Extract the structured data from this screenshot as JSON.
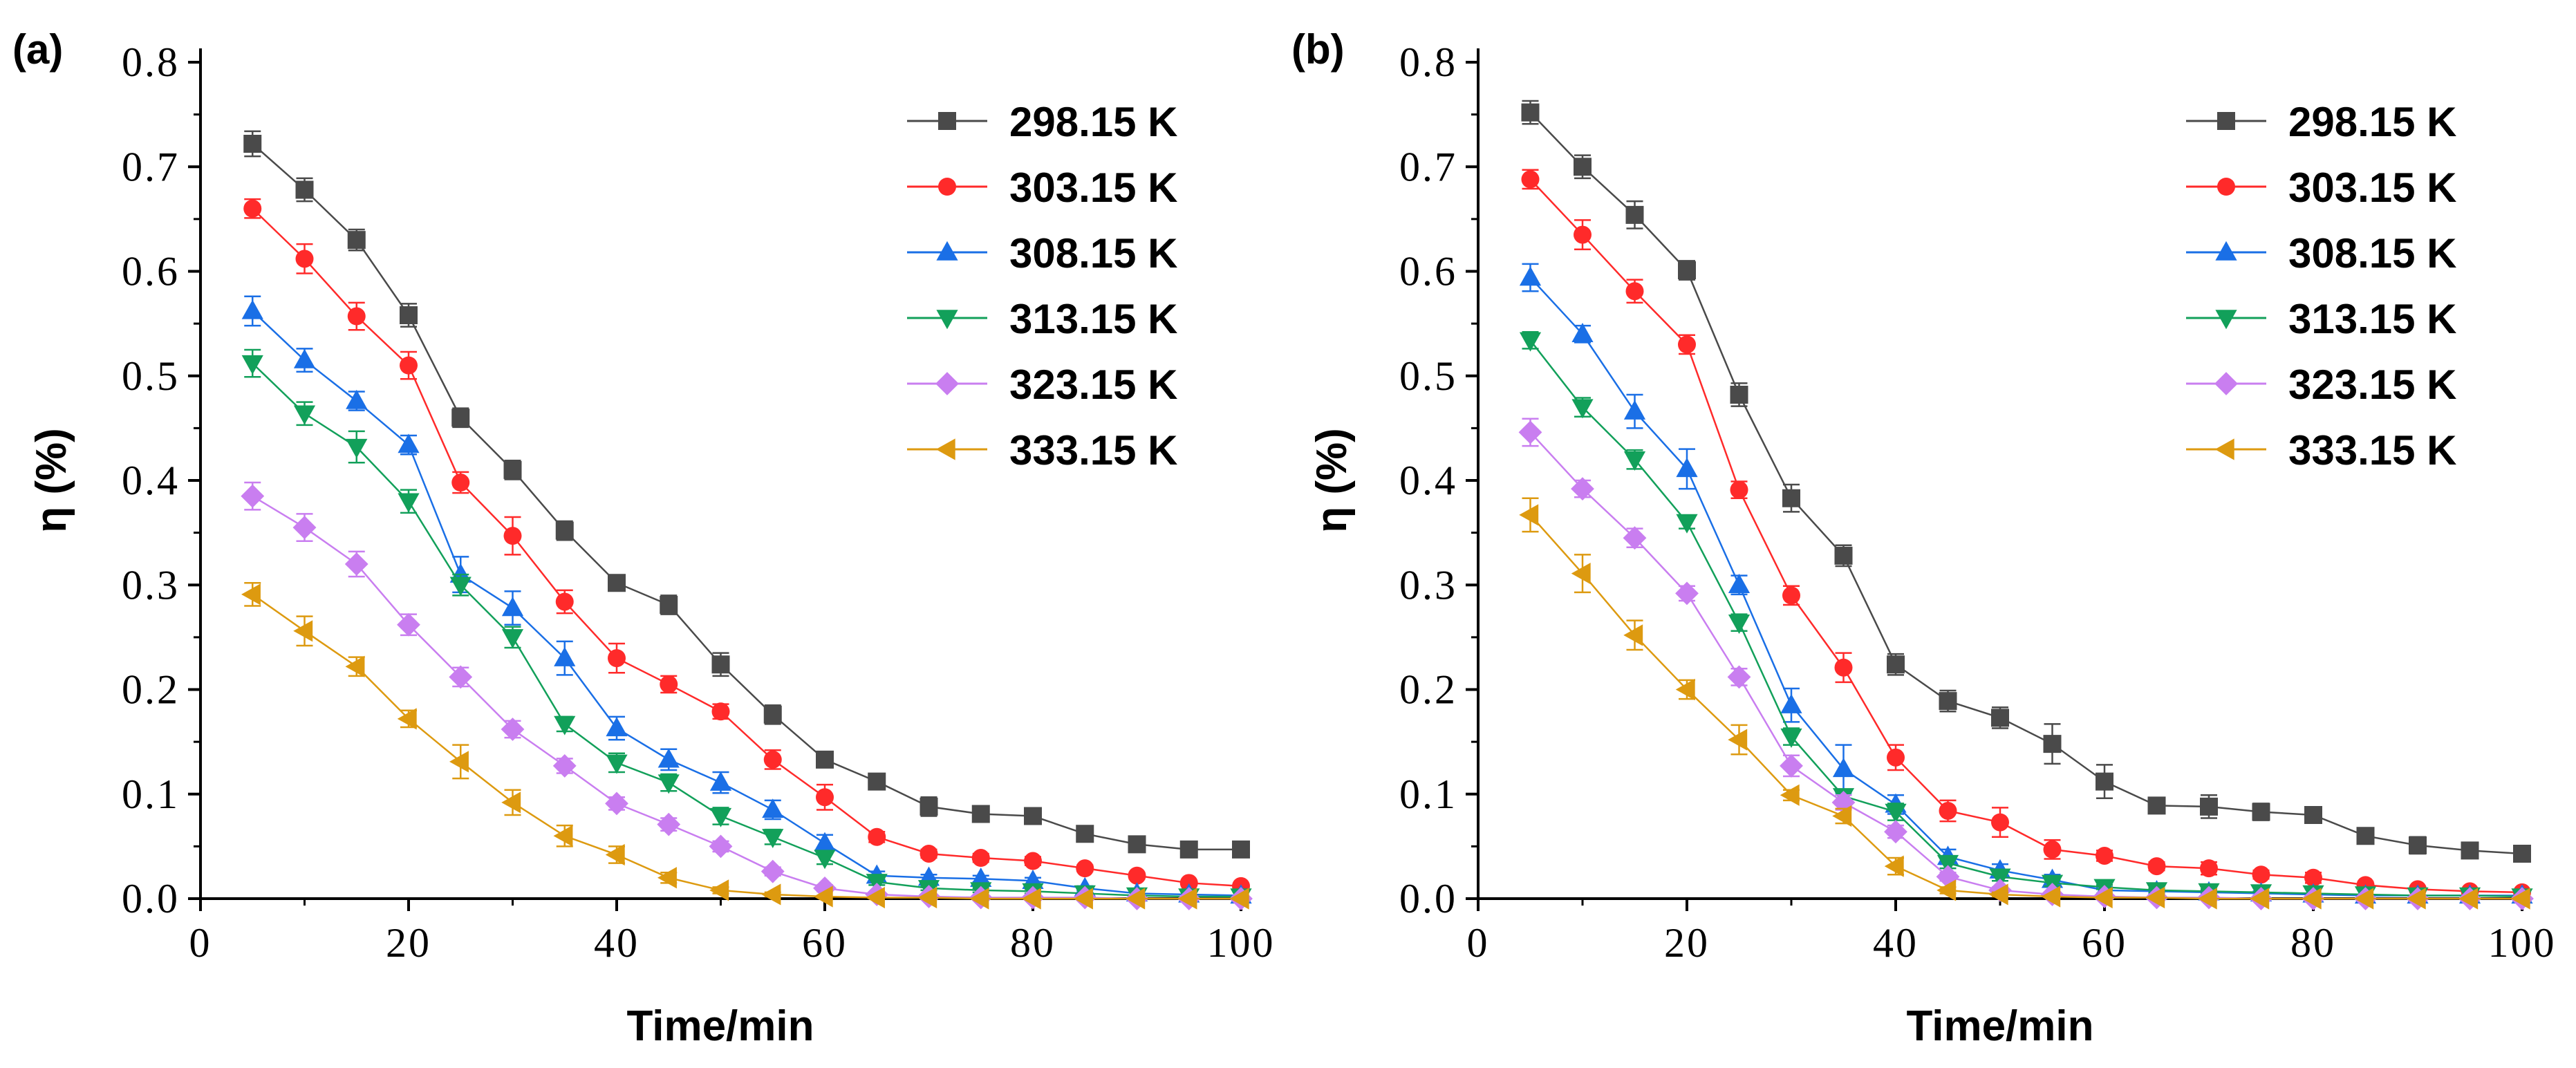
{
  "chart_data": [
    {
      "type": "line",
      "panel_label": "(a)",
      "xlabel": "Time/min",
      "ylabel": "η (%)",
      "xlim": [
        0,
        100
      ],
      "ylim": [
        0,
        0.8
      ],
      "x_ticks": [
        0,
        20,
        40,
        60,
        80,
        100
      ],
      "y_ticks": [
        0.0,
        0.1,
        0.2,
        0.3,
        0.4,
        0.5,
        0.6,
        0.7,
        0.8
      ],
      "x_tick_labels": [
        "0",
        "20",
        "40",
        "60",
        "80",
        "100"
      ],
      "y_tick_labels": [
        "0.0",
        "0.1",
        "0.2",
        "0.3",
        "0.4",
        "0.5",
        "0.6",
        "0.7",
        "0.8"
      ],
      "legend_position": "top-right",
      "x": [
        5,
        10,
        15,
        20,
        25,
        30,
        35,
        40,
        45,
        50,
        55,
        60,
        65,
        70,
        75,
        80,
        85,
        90,
        95,
        100
      ],
      "series": [
        {
          "name": "298.15 K",
          "color": "#4a4a4a",
          "marker": "square",
          "values": [
            0.722,
            0.678,
            0.63,
            0.558,
            0.46,
            0.41,
            0.352,
            0.302,
            0.281,
            0.224,
            0.176,
            0.133,
            0.112,
            0.088,
            0.081,
            0.079,
            0.062,
            0.052,
            0.047,
            0.047
          ],
          "errors": [
            0.012,
            0.011,
            0.01,
            0.011,
            0.009,
            0.009,
            0.009,
            0.006,
            0.009,
            0.011,
            0.009,
            0.006,
            0.006,
            0.009,
            0.006,
            0.005,
            0.006,
            0.005,
            0.004,
            0.005
          ]
        },
        {
          "name": "303.15 K",
          "color": "#ff2a2a",
          "marker": "circle",
          "values": [
            0.66,
            0.612,
            0.557,
            0.51,
            0.398,
            0.347,
            0.284,
            0.23,
            0.205,
            0.179,
            0.133,
            0.097,
            0.059,
            0.043,
            0.039,
            0.036,
            0.029,
            0.022,
            0.015,
            0.012
          ],
          "errors": [
            0.009,
            0.014,
            0.013,
            0.013,
            0.01,
            0.018,
            0.011,
            0.014,
            0.008,
            0.007,
            0.009,
            0.012,
            0.005,
            0.004,
            0.004,
            0.004,
            0.003,
            0.003,
            0.002,
            0.002
          ]
        },
        {
          "name": "308.15 K",
          "color": "#1a6fe6",
          "marker": "triangle-up",
          "values": [
            0.562,
            0.515,
            0.476,
            0.434,
            0.31,
            0.278,
            0.23,
            0.163,
            0.133,
            0.111,
            0.085,
            0.053,
            0.022,
            0.02,
            0.019,
            0.017,
            0.01,
            0.005,
            0.004,
            0.003
          ],
          "errors": [
            0.014,
            0.011,
            0.009,
            0.009,
            0.017,
            0.016,
            0.016,
            0.011,
            0.01,
            0.01,
            0.009,
            0.008,
            0.004,
            0.003,
            0.003,
            0.003,
            0.002,
            0.002,
            0.001,
            0.001
          ]
        },
        {
          "name": "313.15 K",
          "color": "#12a05a",
          "marker": "triangle-down",
          "values": [
            0.512,
            0.464,
            0.432,
            0.38,
            0.3,
            0.25,
            0.167,
            0.13,
            0.111,
            0.079,
            0.059,
            0.039,
            0.016,
            0.01,
            0.008,
            0.007,
            0.005,
            0.003,
            0.002,
            0.002
          ],
          "errors": [
            0.013,
            0.011,
            0.015,
            0.011,
            0.01,
            0.01,
            0.007,
            0.009,
            0.008,
            0.008,
            0.007,
            0.006,
            0.003,
            0.002,
            0.002,
            0.002,
            0.001,
            0.001,
            0.001,
            0.001
          ]
        },
        {
          "name": "323.15 K",
          "color": "#c97ef0",
          "marker": "diamond",
          "values": [
            0.385,
            0.355,
            0.32,
            0.262,
            0.212,
            0.162,
            0.127,
            0.091,
            0.071,
            0.05,
            0.026,
            0.01,
            0.004,
            0.002,
            0.001,
            0.001,
            0.001,
            0.0,
            0.0,
            0.0
          ],
          "errors": [
            0.013,
            0.013,
            0.012,
            0.01,
            0.009,
            0.008,
            0.007,
            0.006,
            0.006,
            0.005,
            0.004,
            0.003,
            0.002,
            0.001,
            0.001,
            0.001,
            0.001,
            0.0,
            0.0,
            0.0
          ],
          "x": [
            5,
            10,
            15,
            20,
            25,
            30,
            35,
            40,
            45,
            50,
            55,
            60,
            65,
            70,
            75,
            80,
            85,
            90,
            95,
            100
          ]
        },
        {
          "name": "333.15 K",
          "color": "#dd9a10",
          "marker": "triangle-left",
          "values": [
            0.291,
            0.256,
            0.222,
            0.172,
            0.131,
            0.092,
            0.06,
            0.042,
            0.02,
            0.008,
            0.004,
            0.002,
            0.001,
            0.001,
            0.0,
            0.0,
            0.0,
            0.0,
            0.0,
            0.0
          ],
          "errors": [
            0.011,
            0.014,
            0.009,
            0.008,
            0.016,
            0.012,
            0.01,
            0.008,
            0.005,
            0.003,
            0.002,
            0.001,
            0.001,
            0.001,
            0.0,
            0.0,
            0.0,
            0.0,
            0.0,
            0.0
          ]
        }
      ]
    },
    {
      "type": "line",
      "panel_label": "(b)",
      "xlabel": "Time/min",
      "ylabel": "η (%)",
      "xlim": [
        0,
        100
      ],
      "ylim": [
        0,
        0.8
      ],
      "x_ticks": [
        0,
        20,
        40,
        60,
        80,
        100
      ],
      "y_ticks": [
        0.0,
        0.1,
        0.2,
        0.3,
        0.4,
        0.5,
        0.6,
        0.7,
        0.8
      ],
      "x_tick_labels": [
        "0",
        "20",
        "40",
        "60",
        "80",
        "100"
      ],
      "y_tick_labels": [
        "0.0",
        "0.1",
        "0.2",
        "0.3",
        "0.4",
        "0.5",
        "0.6",
        "0.7",
        "0.8"
      ],
      "legend_position": "top-right",
      "x": [
        5,
        10,
        15,
        20,
        25,
        30,
        35,
        40,
        45,
        50,
        55,
        60,
        65,
        70,
        75,
        80,
        85,
        90,
        95,
        100
      ],
      "series": [
        {
          "name": "298.15 K",
          "color": "#4a4a4a",
          "marker": "square",
          "values": [
            0.752,
            0.7,
            0.654,
            0.601,
            0.482,
            0.383,
            0.328,
            0.224,
            0.189,
            0.173,
            0.148,
            0.112,
            0.089,
            0.088,
            0.083,
            0.08,
            0.06,
            0.051,
            0.046,
            0.043
          ],
          "errors": [
            0.011,
            0.011,
            0.013,
            0.009,
            0.011,
            0.013,
            0.01,
            0.01,
            0.01,
            0.01,
            0.019,
            0.016,
            0.006,
            0.011,
            0.008,
            0.007,
            0.004,
            0.008,
            0.005,
            0.004
          ]
        },
        {
          "name": "303.15 K",
          "color": "#ff2a2a",
          "marker": "circle",
          "values": [
            0.688,
            0.635,
            0.581,
            0.53,
            0.391,
            0.29,
            0.221,
            0.135,
            0.084,
            0.073,
            0.047,
            0.041,
            0.031,
            0.029,
            0.023,
            0.02,
            0.013,
            0.009,
            0.007,
            0.006
          ],
          "errors": [
            0.009,
            0.014,
            0.011,
            0.009,
            0.008,
            0.009,
            0.014,
            0.012,
            0.01,
            0.014,
            0.009,
            0.005,
            0.004,
            0.006,
            0.004,
            0.005,
            0.003,
            0.002,
            0.002,
            0.002
          ]
        },
        {
          "name": "308.15 K",
          "color": "#1a6fe6",
          "marker": "triangle-up",
          "values": [
            0.594,
            0.54,
            0.466,
            0.411,
            0.3,
            0.185,
            0.124,
            0.09,
            0.04,
            0.027,
            0.018,
            0.008,
            0.007,
            0.006,
            0.005,
            0.004,
            0.003,
            0.003,
            0.003,
            0.003
          ],
          "errors": [
            0.013,
            0.008,
            0.016,
            0.019,
            0.009,
            0.016,
            0.023,
            0.009,
            0.007,
            0.006,
            0.005,
            0.003,
            0.002,
            0.002,
            0.002,
            0.001,
            0.001,
            0.001,
            0.001,
            0.001
          ]
        },
        {
          "name": "313.15 K",
          "color": "#12a05a",
          "marker": "triangle-down",
          "values": [
            0.534,
            0.47,
            0.42,
            0.36,
            0.264,
            0.155,
            0.098,
            0.083,
            0.034,
            0.021,
            0.015,
            0.011,
            0.008,
            0.007,
            0.006,
            0.005,
            0.004,
            0.003,
            0.003,
            0.002
          ],
          "errors": [
            0.008,
            0.009,
            0.009,
            0.006,
            0.008,
            0.008,
            0.006,
            0.008,
            0.005,
            0.004,
            0.003,
            0.002,
            0.002,
            0.002,
            0.001,
            0.001,
            0.001,
            0.001,
            0.001,
            0.001
          ]
        },
        {
          "name": "323.15 K",
          "color": "#c97ef0",
          "marker": "diamond",
          "values": [
            0.446,
            0.392,
            0.345,
            0.292,
            0.212,
            0.127,
            0.092,
            0.064,
            0.021,
            0.008,
            0.004,
            0.002,
            0.001,
            0.001,
            0.0,
            0.0,
            0.0,
            0.0,
            0.0,
            0.0
          ],
          "errors": [
            0.013,
            0.008,
            0.009,
            0.007,
            0.008,
            0.01,
            0.007,
            0.006,
            0.004,
            0.003,
            0.002,
            0.001,
            0.001,
            0.001,
            0.0,
            0.0,
            0.0,
            0.0,
            0.0,
            0.0
          ]
        },
        {
          "name": "333.15 K",
          "color": "#dd9a10",
          "marker": "triangle-left",
          "values": [
            0.367,
            0.311,
            0.252,
            0.2,
            0.152,
            0.099,
            0.079,
            0.031,
            0.008,
            0.004,
            0.002,
            0.001,
            0.001,
            0.0,
            0.0,
            0.0,
            0.0,
            0.0,
            0.0,
            0.0
          ],
          "errors": [
            0.016,
            0.018,
            0.014,
            0.009,
            0.014,
            0.005,
            0.007,
            0.008,
            0.003,
            0.002,
            0.001,
            0.001,
            0.0,
            0.0,
            0.0,
            0.0,
            0.0,
            0.0,
            0.0,
            0.0
          ]
        }
      ]
    }
  ]
}
